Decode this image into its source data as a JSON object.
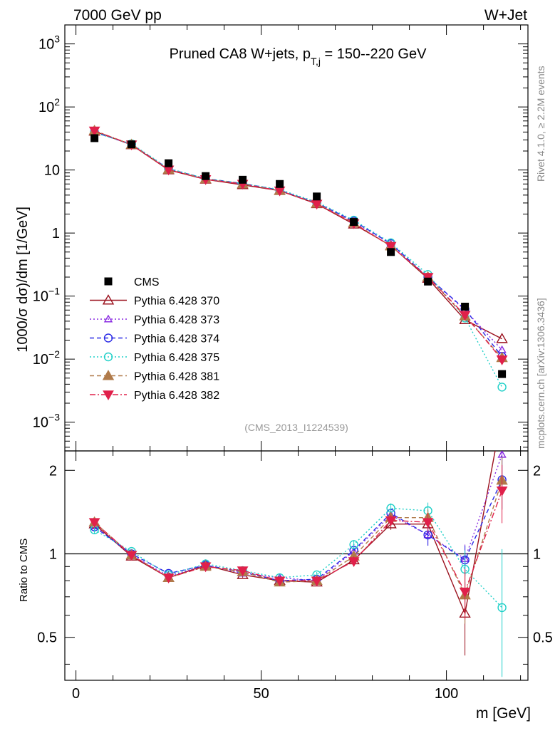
{
  "header": {
    "left": "7000 GeV pp",
    "right": "W+Jet"
  },
  "chart_data": {
    "type": "scatter",
    "title": "Pruned CA8 W+jets, p_T,j = 150--220 GeV",
    "title_parts": {
      "prefix": "Pruned CA8 W+jets, p",
      "sub": "T,j",
      "suffix": " = 150--220 GeV"
    },
    "ylabel_main": "1000/σ  dσ)/dm [1/GeV]",
    "ylabel_ratio": "Ratio to CMS",
    "xlabel": "m [GeV]",
    "analysis_tag": "(CMS_2013_I1224539)",
    "side_text_top": "Rivet 4.1.0, ≥ 2.2M events",
    "side_text_bottom": "mcplots.cern.ch [arXiv:1306.3436]",
    "xlim": [
      -3,
      122
    ],
    "ylim_main": [
      0.00035,
      2000
    ],
    "ylim_ratio": [
      0.35,
      2.35
    ],
    "x_ticks": [
      0,
      50,
      100
    ],
    "x_tick_labels": [
      "0",
      "50",
      "100"
    ],
    "y_ticks_main": [
      {
        "v": 0.001,
        "base": "10",
        "exp": "−3"
      },
      {
        "v": 0.01,
        "base": "10",
        "exp": "−2"
      },
      {
        "v": 0.1,
        "base": "10",
        "exp": "−1"
      },
      {
        "v": 1,
        "base": "1",
        "exp": ""
      },
      {
        "v": 10,
        "base": "10",
        "exp": ""
      },
      {
        "v": 100,
        "base": "10",
        "exp": "2"
      },
      {
        "v": 1000,
        "base": "10",
        "exp": "3"
      }
    ],
    "y_ticks_ratio": [
      {
        "v": 0.5,
        "label": "0.5"
      },
      {
        "v": 1,
        "label": "1"
      },
      {
        "v": 2,
        "label": "2"
      }
    ],
    "x": [
      5,
      15,
      25,
      35,
      45,
      55,
      65,
      75,
      85,
      95,
      105,
      115
    ],
    "data": {
      "name": "CMS",
      "values": [
        32,
        25.5,
        12.8,
        8.0,
        7.0,
        6.0,
        3.8,
        1.5,
        0.5,
        0.17,
        0.068,
        0.0058
      ],
      "color": "#000000"
    },
    "series": [
      {
        "name": "Pythia 6.428 370",
        "color": "#9b111e",
        "marker": "triangle-up-open",
        "line": "solid",
        "values": [
          41,
          25,
          10,
          7.1,
          5.8,
          4.7,
          2.9,
          1.38,
          0.63,
          0.19,
          0.042,
          0.021
        ],
        "ratio": [
          1.28,
          0.98,
          0.82,
          0.91,
          0.84,
          0.8,
          0.79,
          0.95,
          1.28,
          1.28,
          0.61,
          3.2
        ],
        "ratio_err": [
          0.04,
          0.02,
          0.02,
          0.02,
          0.02,
          0.02,
          0.02,
          0.04,
          0.06,
          0.1,
          0.18,
          0.5
        ]
      },
      {
        "name": "Pythia 6.428 373",
        "color": "#8a2be2",
        "marker": "triangle-up-open-small",
        "line": "dotted",
        "values": [
          40,
          25.5,
          10.4,
          7.2,
          6.0,
          4.8,
          3.0,
          1.5,
          0.67,
          0.2,
          0.06,
          0.014
        ],
        "ratio": [
          1.26,
          0.99,
          0.83,
          0.91,
          0.85,
          0.82,
          0.8,
          1.02,
          1.38,
          1.17,
          0.96,
          2.28
        ],
        "ratio_err": [
          0.04,
          0.02,
          0.02,
          0.02,
          0.02,
          0.02,
          0.02,
          0.04,
          0.06,
          0.1,
          0.12,
          0.4
        ]
      },
      {
        "name": "Pythia 6.428 374",
        "color": "#2a2ae6",
        "marker": "circle-open",
        "line": "dashed",
        "values": [
          40,
          25.5,
          10.4,
          7.3,
          6.1,
          4.8,
          3.0,
          1.55,
          0.68,
          0.2,
          0.062,
          0.011
        ],
        "ratio": [
          1.25,
          1.0,
          0.85,
          0.91,
          0.86,
          0.8,
          0.81,
          1.03,
          1.4,
          1.17,
          0.95,
          1.85
        ],
        "ratio_err": [
          0.04,
          0.02,
          0.02,
          0.02,
          0.02,
          0.02,
          0.02,
          0.04,
          0.06,
          0.1,
          0.12,
          0.4
        ]
      },
      {
        "name": "Pythia 6.428 375",
        "color": "#20d0c8",
        "marker": "circle-open",
        "line": "dotted",
        "values": [
          39,
          26,
          10.6,
          7.3,
          6.1,
          4.9,
          3.1,
          1.6,
          0.7,
          0.22,
          0.045,
          0.0036
        ],
        "ratio": [
          1.22,
          1.02,
          0.84,
          0.92,
          0.87,
          0.82,
          0.84,
          1.08,
          1.46,
          1.43,
          0.88,
          0.64
        ],
        "ratio_err": [
          0.04,
          0.02,
          0.02,
          0.02,
          0.02,
          0.02,
          0.02,
          0.04,
          0.06,
          0.1,
          0.15,
          0.4
        ]
      },
      {
        "name": "Pythia 6.428 381",
        "color": "#b07a4a",
        "marker": "triangle-up-filled",
        "line": "dashed",
        "values": [
          42,
          25.3,
          10.2,
          7.2,
          6.0,
          4.7,
          2.95,
          1.45,
          0.62,
          0.2,
          0.048,
          0.0105
        ],
        "ratio": [
          1.3,
          0.99,
          0.82,
          0.9,
          0.86,
          0.79,
          0.8,
          0.98,
          1.35,
          1.35,
          0.71,
          1.84
        ],
        "ratio_err": [
          0.04,
          0.02,
          0.02,
          0.02,
          0.02,
          0.02,
          0.02,
          0.04,
          0.06,
          0.1,
          0.15,
          0.4
        ]
      },
      {
        "name": "Pythia 6.428 382",
        "color": "#e0204a",
        "marker": "triangle-down-filled",
        "line": "dashdot",
        "values": [
          42,
          25.3,
          10.1,
          7.1,
          6.0,
          4.7,
          2.9,
          1.42,
          0.62,
          0.2,
          0.05,
          0.0098
        ],
        "ratio": [
          1.3,
          0.99,
          0.82,
          0.9,
          0.87,
          0.8,
          0.8,
          0.94,
          1.32,
          1.3,
          0.73,
          1.69
        ],
        "ratio_err": [
          0.04,
          0.02,
          0.02,
          0.02,
          0.02,
          0.02,
          0.02,
          0.04,
          0.06,
          0.1,
          0.15,
          0.4
        ]
      }
    ]
  }
}
